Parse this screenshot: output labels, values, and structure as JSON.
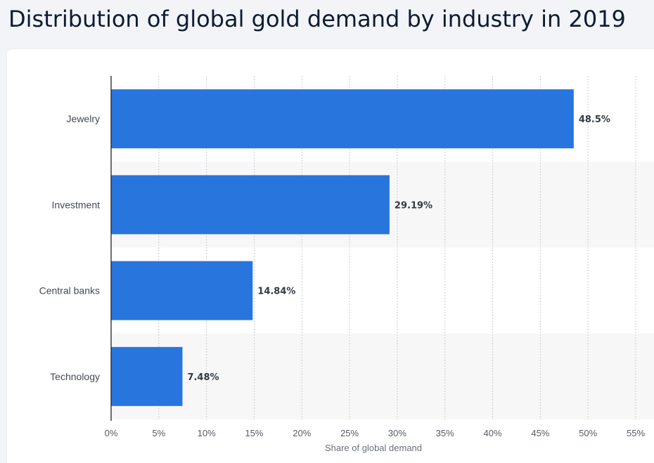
{
  "title": "Distribution of global gold demand by industry in 2019",
  "colors": {
    "bar": "#2876dd",
    "band": "#f7f7f7",
    "grid": "#c9ccd1",
    "axis": "#222222"
  },
  "chart_data": {
    "type": "bar",
    "orientation": "horizontal",
    "categories": [
      "Jewelry",
      "Investment",
      "Central banks",
      "Technology"
    ],
    "values": [
      48.5,
      29.19,
      14.84,
      7.48
    ],
    "value_labels": [
      "48.5%",
      "29.19%",
      "14.84%",
      "7.48%"
    ],
    "title": "Distribution of global gold demand by industry in 2019",
    "xlabel": "Share of global demand",
    "ylabel": "",
    "xlim": [
      0,
      55
    ],
    "xticks": [
      0,
      5,
      10,
      15,
      20,
      25,
      30,
      35,
      40,
      45,
      50,
      55
    ],
    "xtick_labels": [
      "0%",
      "5%",
      "10%",
      "15%",
      "20%",
      "25%",
      "30%",
      "35%",
      "40%",
      "45%",
      "50%",
      "55%"
    ],
    "grid": true,
    "legend": "none"
  }
}
